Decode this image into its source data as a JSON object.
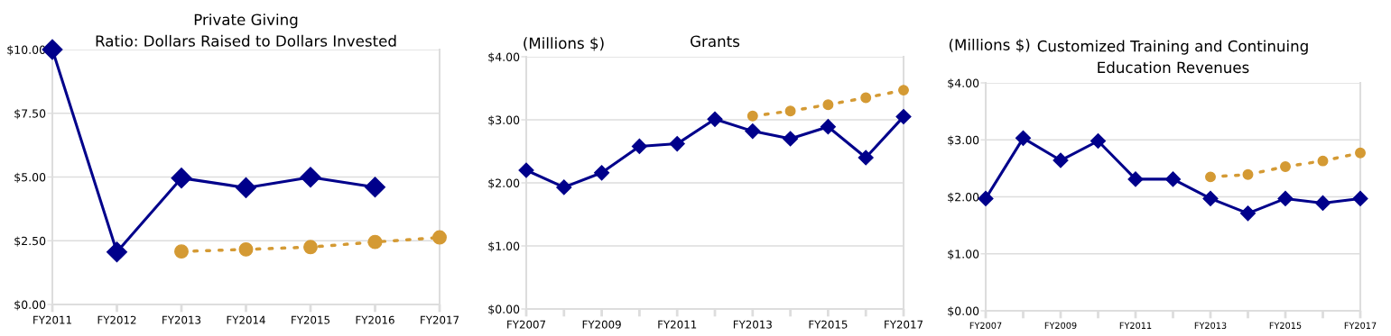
{
  "chart_data": [
    {
      "type": "line",
      "title": "Private Giving\nRatio: Dollars Raised to Dollars Invested",
      "categories": [
        "FY2011",
        "FY2012",
        "FY2013",
        "FY2014",
        "FY2015",
        "FY2016",
        "FY2017"
      ],
      "series": [
        {
          "color": "#00008b",
          "values": [
            10.0,
            2.06,
            4.96,
            4.58,
            4.99,
            4.6,
            null
          ],
          "marker": "diamond",
          "line_style": "solid"
        },
        {
          "color": "#d49a34",
          "values": [
            null,
            null,
            2.08,
            2.16,
            2.25,
            2.45,
            2.63
          ],
          "marker": "circle",
          "line_style": "dotted"
        }
      ],
      "ylim": [
        0,
        10
      ],
      "yticks": [
        {
          "value": 0,
          "label": "$0.00"
        },
        {
          "value": 2.5,
          "label": "$2.50"
        },
        {
          "value": 5,
          "label": "$5.00"
        },
        {
          "value": 7.5,
          "label": "$7.50"
        },
        {
          "value": 10,
          "label": "$10.00"
        }
      ],
      "grid": "y",
      "legend": false
    },
    {
      "type": "line",
      "title": "Grants",
      "ylabel": "(Millions $)",
      "categories": [
        "FY2007",
        null,
        "FY2009",
        null,
        "FY2011",
        null,
        "FY2013",
        null,
        "FY2015",
        null,
        "FY2017"
      ],
      "series": [
        {
          "color": "#00008b",
          "values": [
            2.2,
            1.93,
            2.16,
            2.58,
            2.62,
            3.01,
            2.82,
            2.7,
            2.89,
            2.4,
            3.05
          ],
          "marker": "diamond",
          "line_style": "solid"
        },
        {
          "color": "#d49a34",
          "values": [
            null,
            null,
            null,
            null,
            null,
            null,
            3.06,
            3.14,
            3.24,
            3.35,
            3.47
          ],
          "marker": "circle",
          "line_style": "dotted"
        }
      ],
      "ylim": [
        0,
        4
      ],
      "yticks": [
        {
          "value": 0,
          "label": "$0.00"
        },
        {
          "value": 1,
          "label": "$1.00"
        },
        {
          "value": 2,
          "label": "$2.00"
        },
        {
          "value": 3,
          "label": "$3.00"
        },
        {
          "value": 4,
          "label": "$4.00"
        }
      ],
      "grid": "y",
      "legend": false
    },
    {
      "type": "line",
      "title": "Customized Training and Continuing\nEducation Revenues",
      "ylabel": "(Millions $)",
      "categories": [
        "FY2007",
        null,
        "FY2009",
        null,
        "FY2011",
        null,
        "FY2013",
        null,
        "FY2015",
        null,
        "FY2017"
      ],
      "series": [
        {
          "color": "#00008b",
          "values": [
            1.97,
            3.03,
            2.64,
            2.98,
            2.31,
            2.31,
            1.97,
            1.71,
            1.97,
            1.89,
            1.97
          ],
          "marker": "diamond",
          "line_style": "solid"
        },
        {
          "color": "#d49a34",
          "values": [
            null,
            null,
            null,
            null,
            null,
            null,
            2.35,
            2.39,
            2.53,
            2.63,
            2.77
          ],
          "marker": "circle",
          "line_style": "dotted"
        }
      ],
      "ylim": [
        0,
        4
      ],
      "yticks": [
        {
          "value": 0,
          "label": "$0.00"
        },
        {
          "value": 1,
          "label": "$1.00"
        },
        {
          "value": 2,
          "label": "$2.00"
        },
        {
          "value": 3,
          "label": "$3.00"
        },
        {
          "value": 4,
          "label": "$4.00"
        }
      ],
      "grid": "y",
      "legend": false
    }
  ]
}
